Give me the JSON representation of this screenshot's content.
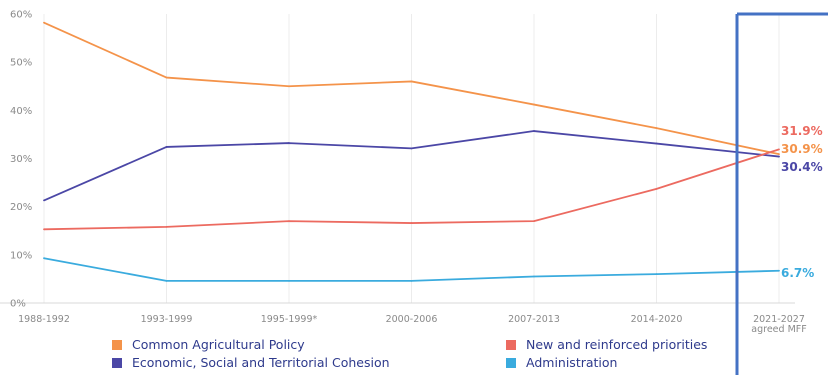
{
  "chart_data": {
    "type": "line",
    "x": [
      "1988-1992",
      "1993-1999",
      "1995-1999*",
      "2000-2006",
      "2007-2013",
      "2014-2020",
      "2021-2027"
    ],
    "x_sublabel_last": "agreed MFF",
    "ylim": [
      0,
      60
    ],
    "yticks": [
      "0%",
      "10%",
      "20%",
      "30%",
      "40%",
      "50%",
      "60%"
    ],
    "grid": "vertical",
    "legend_position": "bottom",
    "series": [
      {
        "name": "Common Agricultural Policy",
        "color": "#f4934a",
        "values": [
          58.2,
          46.8,
          45.0,
          46.0,
          41.2,
          36.3,
          30.9
        ],
        "end_label": "30.9%"
      },
      {
        "name": "Economic, Social and Territorial Cohesion",
        "color": "#4b47a6",
        "values": [
          21.3,
          32.4,
          33.2,
          32.1,
          35.7,
          33.1,
          30.4
        ],
        "end_label": "30.4%"
      },
      {
        "name": "New and reinforced priorities",
        "color": "#ec6a60",
        "values": [
          15.3,
          15.8,
          17.0,
          16.6,
          17.0,
          23.7,
          31.9
        ],
        "end_label": "31.9%"
      },
      {
        "name": "Administration",
        "color": "#3aabde",
        "values": [
          9.3,
          4.6,
          4.6,
          4.6,
          5.5,
          6.0,
          6.7
        ],
        "end_label": "6.7%"
      }
    ],
    "highlight_box_color": "#4472c4"
  }
}
